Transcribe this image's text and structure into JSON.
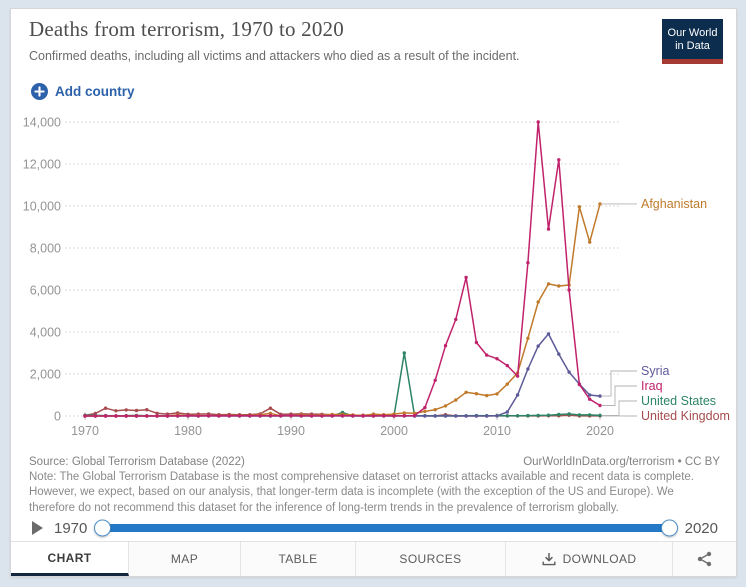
{
  "header": {
    "title": "Deaths from terrorism, 1970 to 2020",
    "subtitle": "Confirmed deaths, including all victims and attackers who died as a result of the incident.",
    "logo_line1": "Our World",
    "logo_line2": "in Data",
    "logo_colors": {
      "background": "#0d2d4e",
      "bar": "#a53a33"
    }
  },
  "controls": {
    "add_country_label": "Add country",
    "accent_blue": "#2d62ab"
  },
  "icons": {
    "add_country": "plus-circle",
    "play": "play-triangle",
    "download": "download-arrow-tray",
    "share": "share-nodes"
  },
  "chart_data": {
    "type": "line",
    "title": "Deaths from terrorism, 1970 to 2020",
    "xlabel": "",
    "ylabel": "",
    "xlim": [
      1970,
      2020
    ],
    "ylim": [
      0,
      14000
    ],
    "xticks": [
      1970,
      1980,
      1990,
      2000,
      2010,
      2020
    ],
    "yticks": [
      0,
      2000,
      4000,
      6000,
      8000,
      10000,
      12000,
      14000
    ],
    "grid": "horizontal-dotted",
    "legend_position": "right-end-labels",
    "years": [
      1970,
      1971,
      1972,
      1973,
      1974,
      1975,
      1976,
      1977,
      1978,
      1979,
      1980,
      1981,
      1982,
      1983,
      1984,
      1985,
      1986,
      1987,
      1988,
      1989,
      1990,
      1991,
      1992,
      1993,
      1994,
      1995,
      1996,
      1997,
      1998,
      1999,
      2000,
      2001,
      2002,
      2003,
      2004,
      2005,
      2006,
      2007,
      2008,
      2009,
      2010,
      2011,
      2012,
      2013,
      2014,
      2015,
      2016,
      2017,
      2018,
      2019,
      2020
    ],
    "series": [
      {
        "name": "United Kingdom",
        "color": "#a64c4e",
        "values": [
          30,
          120,
          370,
          250,
          290,
          260,
          300,
          130,
          90,
          150,
          80,
          90,
          100,
          60,
          70,
          60,
          60,
          100,
          370,
          80,
          90,
          100,
          90,
          80,
          60,
          20,
          30,
          40,
          60,
          10,
          5,
          20,
          10,
          10,
          5,
          60,
          5,
          5,
          5,
          5,
          5,
          5,
          5,
          5,
          5,
          10,
          10,
          40,
          5,
          5,
          5
        ]
      },
      {
        "name": "United States",
        "color": "#2c8465",
        "values": [
          40,
          30,
          20,
          10,
          15,
          30,
          10,
          5,
          10,
          5,
          10,
          5,
          10,
          10,
          5,
          5,
          5,
          5,
          5,
          5,
          10,
          5,
          10,
          10,
          5,
          170,
          5,
          5,
          5,
          15,
          5,
          3000,
          5,
          10,
          5,
          5,
          5,
          10,
          20,
          15,
          15,
          10,
          10,
          20,
          30,
          40,
          70,
          95,
          50,
          50,
          30
        ]
      },
      {
        "name": "Syria",
        "color": "#5d5a99",
        "values": [
          0,
          0,
          0,
          0,
          0,
          0,
          0,
          0,
          0,
          0,
          0,
          0,
          0,
          0,
          0,
          0,
          0,
          0,
          0,
          0,
          0,
          0,
          0,
          0,
          0,
          0,
          0,
          0,
          0,
          0,
          0,
          0,
          0,
          0,
          0,
          0,
          0,
          0,
          0,
          0,
          10,
          190,
          1000,
          2240,
          3330,
          3910,
          2950,
          2090,
          1520,
          1000,
          950
        ]
      },
      {
        "name": "Afghanistan",
        "color": "#c07a2b",
        "values": [
          0,
          0,
          0,
          0,
          0,
          0,
          0,
          0,
          0,
          50,
          10,
          20,
          10,
          15,
          30,
          25,
          30,
          50,
          130,
          10,
          15,
          60,
          20,
          45,
          70,
          80,
          50,
          20,
          90,
          60,
          90,
          150,
          130,
          220,
          300,
          480,
          760,
          1130,
          1060,
          970,
          1050,
          1520,
          2050,
          3700,
          5430,
          6290,
          6190,
          6240,
          9960,
          8280,
          10100
        ]
      },
      {
        "name": "Iraq",
        "color": "#c0226b",
        "values": [
          0,
          0,
          0,
          0,
          0,
          0,
          0,
          0,
          0,
          5,
          10,
          5,
          10,
          5,
          10,
          15,
          10,
          10,
          20,
          10,
          25,
          10,
          5,
          5,
          10,
          10,
          10,
          5,
          5,
          15,
          5,
          10,
          20,
          400,
          1700,
          3350,
          4600,
          6600,
          3500,
          2900,
          2730,
          2400,
          1900,
          7300,
          14000,
          8900,
          12200,
          6000,
          1500,
          800,
          500
        ]
      }
    ]
  },
  "footer": {
    "source": "Source: Global Terrorism Database (2022)",
    "attribution": "OurWorldInData.org/terrorism • CC BY",
    "note": "Note: The Global Terrorism Database is the most comprehensive dataset on terrorist attacks available and recent data is complete. However, we expect, based on our analysis, that longer-term data is incomplete (with the exception of the US and Europe). We therefore do not recommend this dataset for the inference of long-term trends in the prevalence of terrorism globally."
  },
  "timeline": {
    "start": "1970",
    "end": "2020"
  },
  "tabs": {
    "items": [
      {
        "label": "CHART",
        "active": true
      },
      {
        "label": "MAP",
        "active": false
      },
      {
        "label": "TABLE",
        "active": false
      },
      {
        "label": "SOURCES",
        "active": false
      },
      {
        "label": "DOWNLOAD",
        "active": false
      }
    ]
  }
}
